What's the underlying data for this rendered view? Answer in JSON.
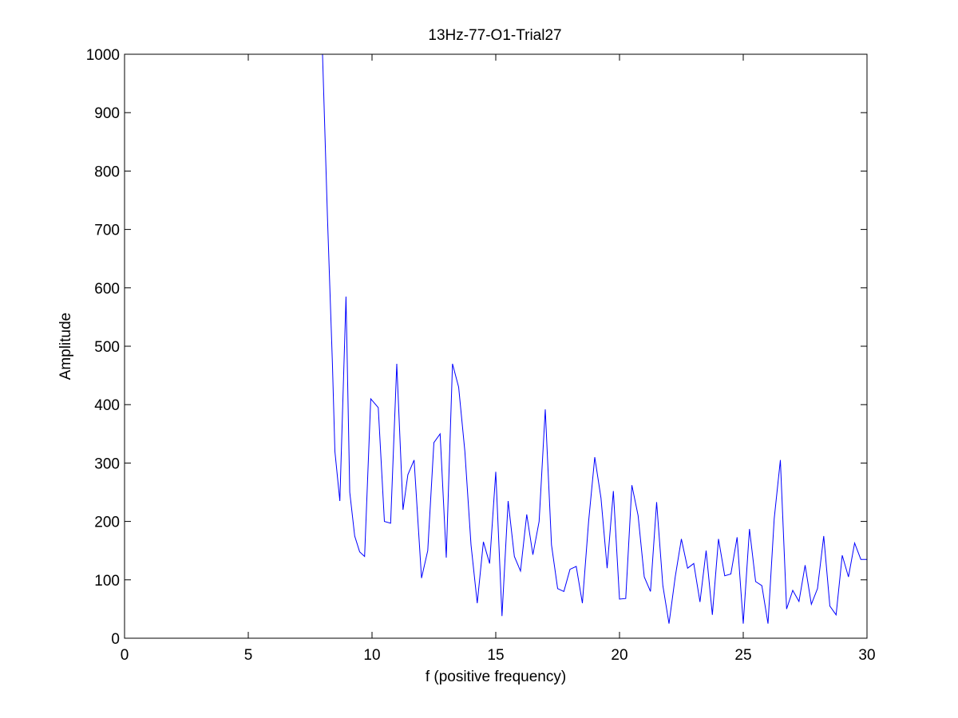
{
  "chart_data": {
    "type": "line",
    "title": "13Hz-77-O1-Trial27",
    "xlabel": "f (positive frequency)",
    "ylabel": "Amplitude",
    "xlim": [
      0,
      30
    ],
    "ylim": [
      0,
      1000
    ],
    "xticks": [
      0,
      5,
      10,
      15,
      20,
      25,
      30
    ],
    "yticks": [
      0,
      100,
      200,
      300,
      400,
      500,
      600,
      700,
      800,
      900,
      1000
    ],
    "grid": false,
    "line_color": "#0000ff",
    "series": [
      {
        "name": "",
        "x": [
          8.0,
          8.2,
          8.4,
          8.5,
          8.7,
          8.95,
          9.1,
          9.3,
          9.5,
          9.7,
          9.95,
          10.25,
          10.5,
          10.75,
          11.0,
          11.25,
          11.45,
          11.7,
          12.0,
          12.25,
          12.5,
          12.75,
          13.0,
          13.25,
          13.5,
          13.75,
          14.0,
          14.25,
          14.5,
          14.75,
          15.0,
          15.25,
          15.5,
          15.75,
          16.0,
          16.25,
          16.5,
          16.75,
          17.0,
          17.25,
          17.5,
          17.75,
          18.0,
          18.25,
          18.5,
          18.75,
          19.0,
          19.25,
          19.5,
          19.75,
          20.0,
          20.25,
          20.5,
          20.75,
          21.0,
          21.25,
          21.5,
          21.75,
          22.0,
          22.25,
          22.5,
          22.75,
          23.0,
          23.25,
          23.5,
          23.75,
          24.0,
          24.25,
          24.5,
          24.75,
          25.0,
          25.25,
          25.5,
          25.75,
          26.0,
          26.25,
          26.5,
          26.75,
          27.0,
          27.25,
          27.5,
          27.75,
          28.0,
          28.25,
          28.5,
          28.75,
          29.0,
          29.25,
          29.5,
          29.75,
          30.0
        ],
        "y": [
          1000,
          720,
          470,
          320,
          235,
          585,
          250,
          175,
          148,
          140,
          410,
          395,
          200,
          197,
          470,
          220,
          280,
          305,
          103,
          150,
          335,
          350,
          138,
          470,
          430,
          320,
          160,
          60,
          165,
          128,
          285,
          38,
          235,
          140,
          115,
          212,
          143,
          200,
          392,
          160,
          85,
          80,
          118,
          123,
          60,
          200,
          310,
          240,
          120,
          252,
          67,
          68,
          262,
          210,
          105,
          80,
          233,
          90,
          25,
          105,
          170,
          120,
          128,
          62,
          150,
          40,
          170,
          107,
          110,
          173,
          25,
          187,
          97,
          90,
          25,
          205,
          305,
          50,
          82,
          63,
          125,
          58,
          85,
          175,
          55,
          40,
          142,
          105,
          163,
          135,
          135
        ]
      }
    ]
  }
}
